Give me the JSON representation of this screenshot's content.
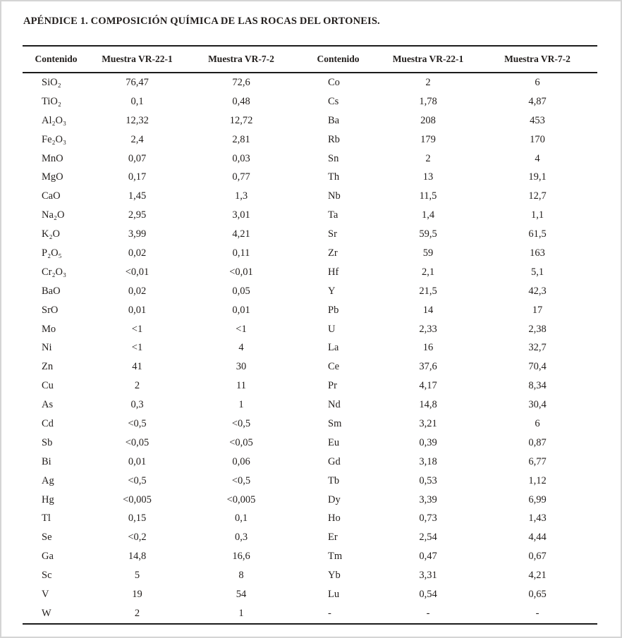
{
  "title": "APÉNDICE 1. COMPOSICIÓN QUÍMICA DE LAS ROCAS DEL ORTONEIS.",
  "colors": {
    "text": "#221e1c",
    "rule": "#1c1c1c",
    "frame": "#d4d4d4"
  },
  "table": {
    "headers": [
      "Contenido",
      "Muestra VR-22-1",
      "Muestra VR-7-2",
      "Contenido",
      "Muestra VR-22-1",
      "Muestra VR-7-2"
    ],
    "rows": [
      [
        "SiO₂",
        "76,47",
        "72,6",
        "Co",
        "2",
        "6"
      ],
      [
        "TiO₂",
        "0,1",
        "0,48",
        "Cs",
        "1,78",
        "4,87"
      ],
      [
        "Al₂O₃",
        "12,32",
        "12,72",
        "Ba",
        "208",
        "453"
      ],
      [
        "Fe₂O₃",
        "2,4",
        "2,81",
        "Rb",
        "179",
        "170"
      ],
      [
        "MnO",
        "0,07",
        "0,03",
        "Sn",
        "2",
        "4"
      ],
      [
        "MgO",
        "0,17",
        "0,77",
        "Th",
        "13",
        "19,1"
      ],
      [
        "CaO",
        "1,45",
        "1,3",
        "Nb",
        "11,5",
        "12,7"
      ],
      [
        "Na₂O",
        "2,95",
        "3,01",
        "Ta",
        "1,4",
        "1,1"
      ],
      [
        "K₂O",
        "3,99",
        "4,21",
        "Sr",
        "59,5",
        "61,5"
      ],
      [
        "P₂O₅",
        "0,02",
        "0,11",
        "Zr",
        "59",
        "163"
      ],
      [
        "Cr₂O₃",
        "<0,01",
        "<0,01",
        "Hf",
        "2,1",
        "5,1"
      ],
      [
        "BaO",
        "0,02",
        "0,05",
        "Y",
        "21,5",
        "42,3"
      ],
      [
        "SrO",
        "0,01",
        "0,01",
        "Pb",
        "14",
        "17"
      ],
      [
        "Mo",
        "<1",
        "<1",
        "U",
        "2,33",
        "2,38"
      ],
      [
        "Ni",
        "<1",
        "4",
        "La",
        "16",
        "32,7"
      ],
      [
        "Zn",
        "41",
        "30",
        "Ce",
        "37,6",
        "70,4"
      ],
      [
        "Cu",
        "2",
        "11",
        "Pr",
        "4,17",
        "8,34"
      ],
      [
        "As",
        "0,3",
        "1",
        "Nd",
        "14,8",
        "30,4"
      ],
      [
        "Cd",
        "<0,5",
        "<0,5",
        "Sm",
        "3,21",
        "6"
      ],
      [
        "Sb",
        "<0,05",
        "<0,05",
        "Eu",
        "0,39",
        "0,87"
      ],
      [
        "Bi",
        "0,01",
        "0,06",
        "Gd",
        "3,18",
        "6,77"
      ],
      [
        "Ag",
        "<0,5",
        "<0,5",
        "Tb",
        "0,53",
        "1,12"
      ],
      [
        "Hg",
        "<0,005",
        "<0,005",
        "Dy",
        "3,39",
        "6,99"
      ],
      [
        "Tl",
        "0,15",
        "0,1",
        "Ho",
        "0,73",
        "1,43"
      ],
      [
        "Se",
        "<0,2",
        "0,3",
        "Er",
        "2,54",
        "4,44"
      ],
      [
        "Ga",
        "14,8",
        "16,6",
        "Tm",
        "0,47",
        "0,67"
      ],
      [
        "Sc",
        "5",
        "8",
        "Yb",
        "3,31",
        "4,21"
      ],
      [
        "V",
        "19",
        "54",
        "Lu",
        "0,54",
        "0,65"
      ],
      [
        "W",
        "2",
        "1",
        "-",
        "-",
        "-"
      ]
    ]
  }
}
